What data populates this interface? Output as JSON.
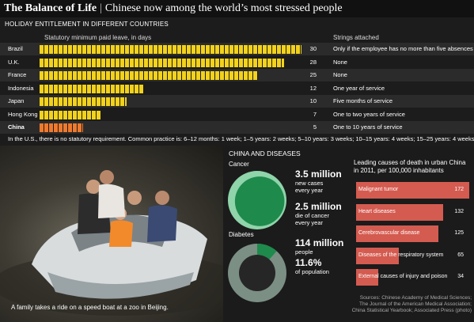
{
  "header": {
    "title": "The Balance of Life",
    "separator": "|",
    "subtitle": "Chinese now among the world’s most stressed people"
  },
  "holiday": {
    "section_title": "HOLIDAY ENTITLEMENT IN DIFFERENT COUNTRIES",
    "column_bars": "Statutory minimum paid leave, in days",
    "column_strings": "Strings attached",
    "footnote": "In the U.S., there is no statutory requirement. Common practice is: 6–12 months: 1 week; 1–5 years: 2 weeks; 5–10 years: 3 weeks; 10–15 years: 4 weeks; 15–25 years: 4 weeks.",
    "rows": [
      {
        "country": "Brazil",
        "days": "30",
        "strings": "Only if the employee has no more than five absences"
      },
      {
        "country": "U.K.",
        "days": "28",
        "strings": "None"
      },
      {
        "country": "France",
        "days": "25",
        "strings": "None"
      },
      {
        "country": "Indonesia",
        "days": "12",
        "strings": "One year of service"
      },
      {
        "country": "Japan",
        "days": "10",
        "strings": "Five months of service"
      },
      {
        "country": "Hong Kong",
        "days": "7",
        "strings": "One to two years of service"
      },
      {
        "country": "China",
        "days": "5",
        "strings": "One to 10 years of service"
      }
    ]
  },
  "photo": {
    "caption": "A family takes a ride on a speed boat at a zoo in Beijing."
  },
  "disease": {
    "title": "CHINA AND DISEASES",
    "cancer_label": "Cancer",
    "cancer_new": "3.5 million",
    "cancer_new_desc_1": "new cases",
    "cancer_new_desc_2": "every year",
    "cancer_die": "2.5 million",
    "cancer_die_desc_1": "die of cancer",
    "cancer_die_desc_2": "every year",
    "diabetes_label": "Diabetes",
    "diabetes_people": "114 million",
    "diabetes_people_desc": "people",
    "diabetes_pct": "11.6%",
    "diabetes_pct_desc": "of population"
  },
  "leading_causes": {
    "title_1": "Leading causes of death in urban China",
    "title_2": "in 2011, per 100,000 inhabitants",
    "items": [
      {
        "label": "Malignant tumor",
        "value": "172"
      },
      {
        "label": "Heart diseases",
        "value": "132"
      },
      {
        "label": "Cerebrovascular disease",
        "value": "125"
      },
      {
        "label": "Diseases of the respiratory system",
        "value": "65"
      },
      {
        "label": "External causes of injury and poison",
        "value": "34"
      }
    ]
  },
  "sources": {
    "line_1": "Sources: Chinese Academy of Medical Sciences;",
    "line_2": "The Journal of the American Medical Association;",
    "line_3": "China Statistical Yearbook; Associated Press (photo)"
  },
  "colors": {
    "bar_yellow": "#f2d21c",
    "bar_china": "#ee7a2e",
    "band": "#2b2b2b",
    "pie_light": "#8fd4aa",
    "pie_dark": "#1e8a4c",
    "diabetes_ring": "#7b8f84",
    "cause_bar": "#d45b50"
  },
  "chart_data": [
    {
      "type": "bar",
      "title": "Statutory minimum paid leave, in days",
      "categories": [
        "Brazil",
        "U.K.",
        "France",
        "Indonesia",
        "Japan",
        "Hong Kong",
        "China"
      ],
      "values": [
        30,
        28,
        25,
        12,
        10,
        7,
        5
      ],
      "xlim": [
        0,
        30
      ]
    },
    {
      "type": "pie",
      "title": "Cancer",
      "categories": [
        "new cases every year",
        "die of cancer every year"
      ],
      "values": [
        3.5,
        2.5
      ]
    },
    {
      "type": "pie",
      "title": "Diabetes",
      "categories": [
        "of population"
      ],
      "values": [
        11.6
      ]
    },
    {
      "type": "bar",
      "title": "Leading causes of death in urban China in 2011, per 100,000 inhabitants",
      "categories": [
        "Malignant tumor",
        "Heart diseases",
        "Cerebrovascular disease",
        "Diseases of the respiratory system",
        "External causes of injury and poison"
      ],
      "values": [
        172,
        132,
        125,
        65,
        34
      ],
      "xlim": [
        0,
        172
      ]
    }
  ]
}
